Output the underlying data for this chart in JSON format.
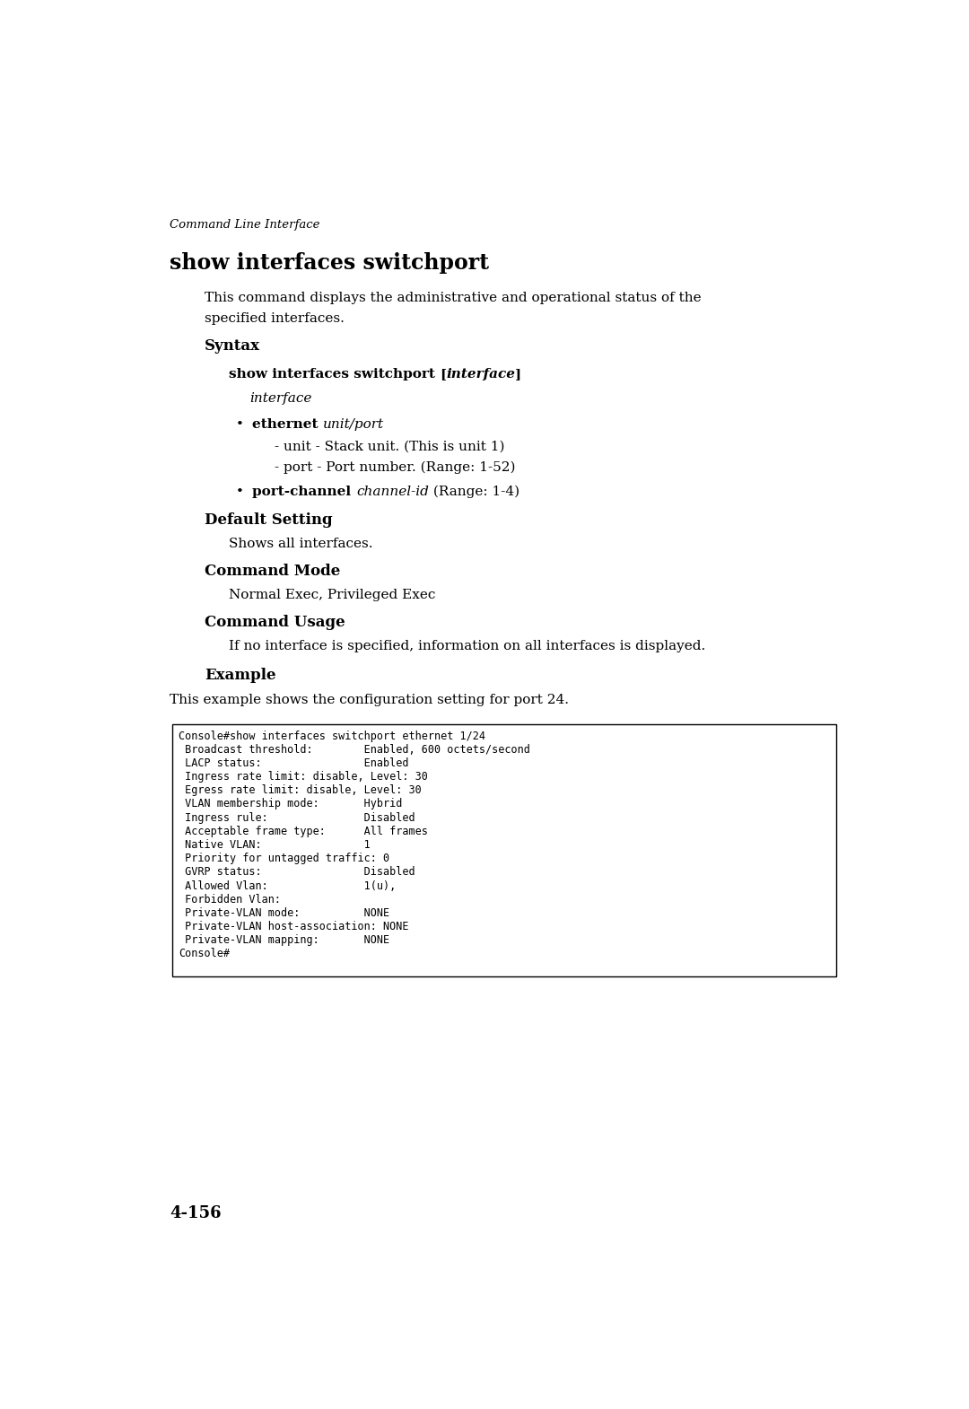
{
  "background_color": "#ffffff",
  "page_width": 10.8,
  "page_height": 15.7,
  "header_text": "Command Line Interface",
  "main_title": "show interfaces switchport",
  "desc_line1": "This command displays the administrative and operational status of the",
  "desc_line2": "specified interfaces.",
  "syntax_label": "Syntax",
  "interface_label_italic": "interface",
  "sub1": "- unit - Stack unit. (This is unit 1)",
  "sub2": "- port - Port number. (Range: 1-52)",
  "bullet2_rest": " (Range: 1-4)",
  "default_setting_label": "Default Setting",
  "default_setting_text": "Shows all interfaces.",
  "command_mode_label": "Command Mode",
  "command_mode_text": "Normal Exec, Privileged Exec",
  "command_usage_label": "Command Usage",
  "command_usage_text": "If no interface is specified, information on all interfaces is displayed.",
  "example_label": "Example",
  "example_intro": "This example shows the configuration setting for port 24.",
  "code_lines": [
    "Console#show interfaces switchport ethernet 1/24",
    " Broadcast threshold:        Enabled, 600 octets/second",
    " LACP status:                Enabled",
    " Ingress rate limit: disable, Level: 30",
    " Egress rate limit: disable, Level: 30",
    " VLAN membership mode:       Hybrid",
    " Ingress rule:               Disabled",
    " Acceptable frame type:      All frames",
    " Native VLAN:                1",
    " Priority for untagged traffic: 0",
    " GVRP status:                Disabled",
    " Allowed Vlan:               1(u),",
    " Forbidden Vlan:",
    " Private-VLAN mode:          NONE",
    " Private-VLAN host-association: NONE",
    " Private-VLAN mapping:       NONE",
    "Console#"
  ],
  "page_number": "4-156",
  "text_color": "#000000",
  "code_bg_color": "#ffffff",
  "code_border_color": "#000000"
}
